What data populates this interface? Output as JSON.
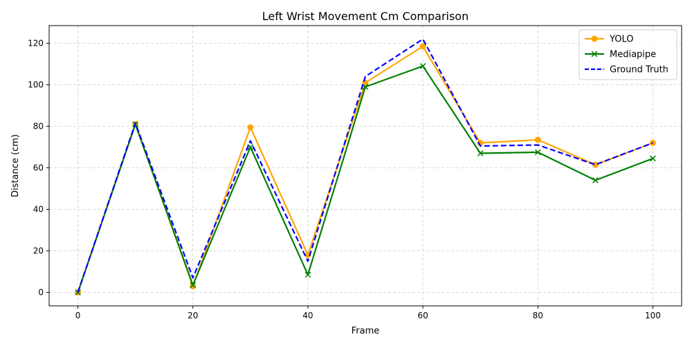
{
  "chart_data": {
    "type": "line",
    "title": "Left Wrist Movement Cm Comparison",
    "xlabel": "Frame",
    "ylabel": "Distance (cm)",
    "x": [
      0,
      10,
      20,
      30,
      40,
      50,
      60,
      70,
      80,
      90,
      100
    ],
    "xlim": [
      -5,
      105
    ],
    "ylim": [
      -6.5,
      128.5
    ],
    "xticks": [
      0,
      20,
      40,
      60,
      80,
      100
    ],
    "yticks": [
      0,
      20,
      40,
      60,
      80,
      100,
      120
    ],
    "grid": true,
    "legend_position": "top-right",
    "series": [
      {
        "name": "YOLO",
        "color": "#ffa500",
        "marker": "circle",
        "line_style": "solid",
        "values": [
          0,
          81,
          3,
          79.5,
          18,
          101,
          118.5,
          72,
          73.5,
          61.5,
          72
        ]
      },
      {
        "name": "Mediapipe",
        "color": "#008000",
        "marker": "x",
        "line_style": "solid",
        "values": [
          0,
          81,
          3.5,
          70,
          8.5,
          99,
          109,
          67,
          67.5,
          54,
          64.5
        ]
      },
      {
        "name": "Ground Truth",
        "color": "#0000ff",
        "marker": "none",
        "line_style": "dashed",
        "values": [
          0,
          81.5,
          7,
          73,
          15,
          104,
          122,
          70.5,
          71,
          61.5,
          72
        ]
      }
    ]
  }
}
